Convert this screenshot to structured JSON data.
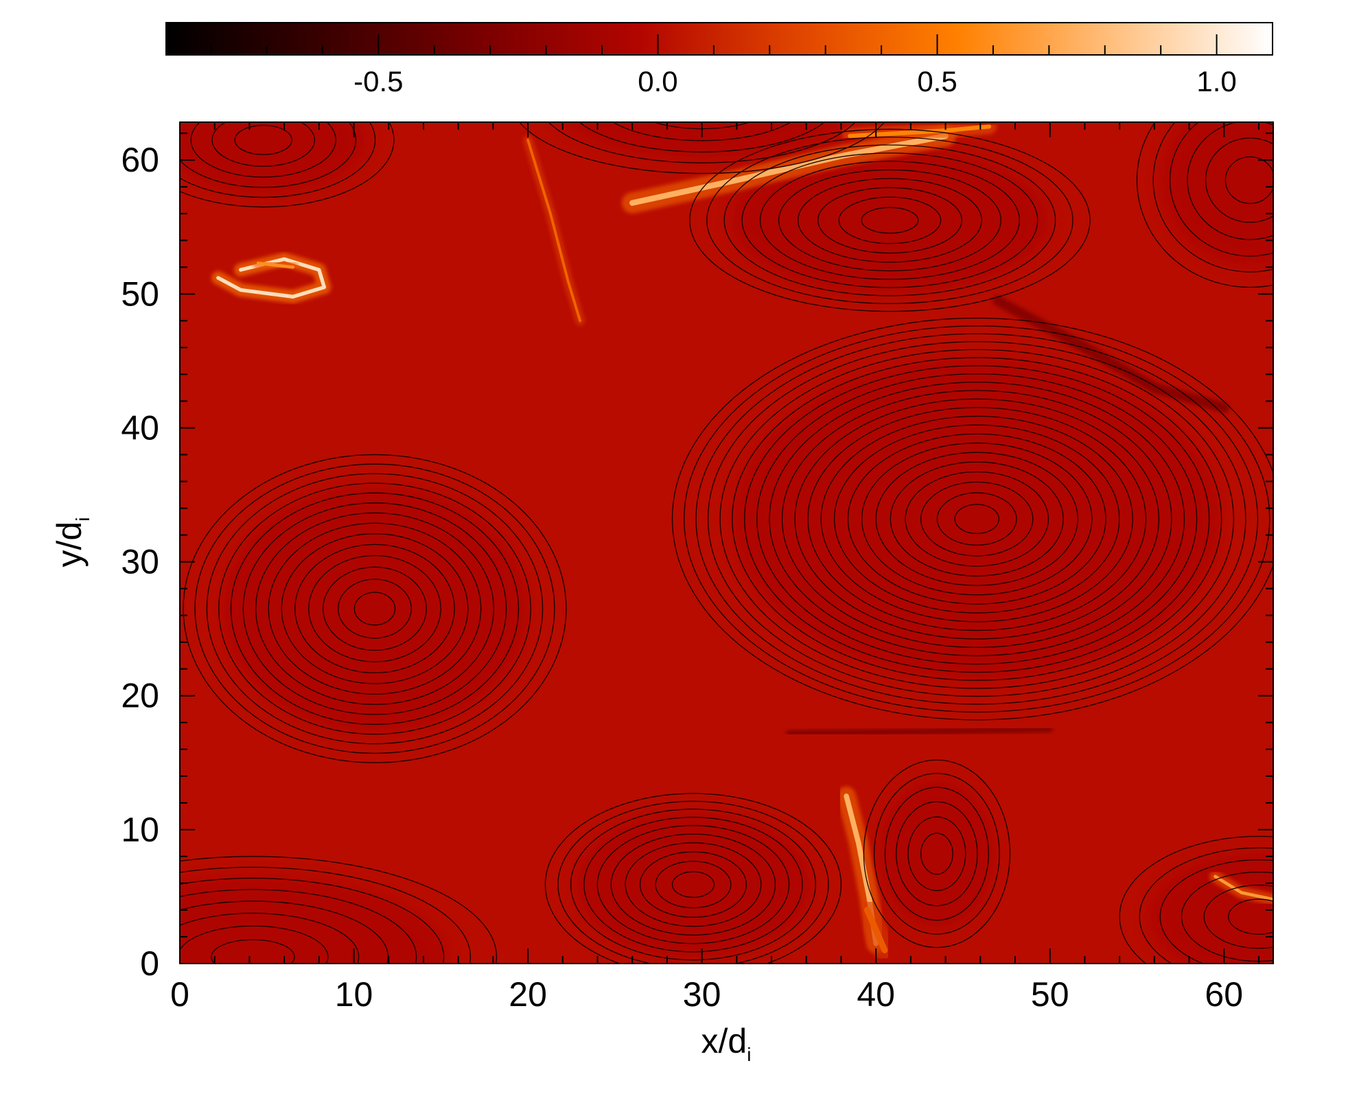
{
  "chart_data": {
    "type": "heatmap",
    "title": "",
    "xlabel": {
      "main": "x/d",
      "sub": "i"
    },
    "ylabel": {
      "main": "y/d",
      "sub": "i"
    },
    "xlim": [
      0,
      62.83
    ],
    "ylim": [
      0,
      62.83
    ],
    "x_ticks": [
      "0",
      "10",
      "20",
      "30",
      "40",
      "50",
      "60"
    ],
    "y_ticks": [
      "0",
      "10",
      "20",
      "30",
      "40",
      "50",
      "60"
    ],
    "colorbar": {
      "range": [
        -0.88,
        1.1
      ],
      "ticks": [
        "-0.5",
        "0.0",
        "0.5",
        "1.0"
      ],
      "tick_values": [
        -0.5,
        0.0,
        0.5,
        1.0
      ],
      "colors": [
        "#000000",
        "#3a0000",
        "#7a0000",
        "#b30500",
        "#e04500",
        "#ff8000",
        "#ffc080",
        "#ffffff"
      ]
    },
    "background_value": 0.0,
    "overlay": "black magnetic field line contours",
    "islands": [
      {
        "cx": 11.2,
        "cy": 26.5,
        "rx": 11.0,
        "ry": 11.5,
        "rings": 14
      },
      {
        "cx": 45.8,
        "cy": 33.2,
        "rx": 17.5,
        "ry": 15.0,
        "rings": 22
      },
      {
        "cx": 29.5,
        "cy": 5.9,
        "rx": 8.5,
        "ry": 6.8,
        "rings": 10
      },
      {
        "cx": 43.5,
        "cy": 8.2,
        "rx": 4.2,
        "ry": 7.0,
        "rings": 6
      },
      {
        "cx": 40.8,
        "cy": 55.5,
        "rx": 11.5,
        "ry": 6.8,
        "rings": 10
      },
      {
        "cx": 4.8,
        "cy": 61.5,
        "rx": 7.5,
        "ry": 5.0,
        "rings": 6
      },
      {
        "cx": 4.2,
        "cy": 0.5,
        "rx": 14.0,
        "ry": 7.5,
        "rings": 8
      },
      {
        "cx": 30.0,
        "cy": 64.5,
        "rx": 11.0,
        "ry": 5.5,
        "rings": 6
      },
      {
        "cx": 62.0,
        "cy": 3.5,
        "rx": 8.0,
        "ry": 6.0,
        "rings": 6
      },
      {
        "cx": 61.5,
        "cy": 58.5,
        "rx": 6.5,
        "ry": 8.0,
        "rings": 6
      }
    ],
    "current_sheets": [
      {
        "points": [
          [
            26.0,
            56.8
          ],
          [
            32.0,
            58.5
          ],
          [
            38.0,
            60.3
          ],
          [
            44.0,
            61.8
          ]
        ],
        "value": 0.75,
        "width": 0.55
      },
      {
        "points": [
          [
            38.5,
            61.8
          ],
          [
            44.0,
            62.2
          ],
          [
            46.5,
            62.5
          ]
        ],
        "value": 0.55,
        "width": 0.4
      },
      {
        "points": [
          [
            3.5,
            51.8
          ],
          [
            6.0,
            52.6
          ],
          [
            8.0,
            51.8
          ],
          [
            8.3,
            50.5
          ],
          [
            6.5,
            49.8
          ],
          [
            3.5,
            50.3
          ],
          [
            2.2,
            51.2
          ]
        ],
        "value": 0.95,
        "width": 0.35
      },
      {
        "points": [
          [
            4.5,
            52.3
          ],
          [
            6.5,
            52.0
          ]
        ],
        "value": 0.6,
        "width": 0.3
      },
      {
        "points": [
          [
            38.3,
            12.5
          ],
          [
            39.0,
            9.0
          ],
          [
            39.6,
            5.0
          ],
          [
            40.0,
            1.5
          ]
        ],
        "value": 0.75,
        "width": 0.5
      },
      {
        "points": [
          [
            40.5,
            1.0
          ],
          [
            39.5,
            4.0
          ]
        ],
        "value": 0.35,
        "width": 0.6
      },
      {
        "points": [
          [
            59.5,
            6.5
          ],
          [
            61.0,
            5.3
          ],
          [
            62.8,
            4.8
          ]
        ],
        "value": 0.65,
        "width": 0.3
      },
      {
        "points": [
          [
            20.0,
            61.5
          ],
          [
            21.3,
            56.0
          ],
          [
            22.3,
            51.0
          ],
          [
            23.0,
            48.0
          ]
        ],
        "value": 0.4,
        "width": 0.25
      }
    ],
    "dark_sheets": [
      {
        "points": [
          [
            47.0,
            49.5
          ],
          [
            52.0,
            46.0
          ],
          [
            56.0,
            43.0
          ],
          [
            60.0,
            41.5
          ]
        ],
        "value": -0.3,
        "width": 0.6
      },
      {
        "points": [
          [
            35.0,
            17.2
          ],
          [
            42.0,
            17.3
          ],
          [
            50.0,
            17.5
          ]
        ],
        "value": -0.35,
        "width": 0.35
      }
    ]
  }
}
